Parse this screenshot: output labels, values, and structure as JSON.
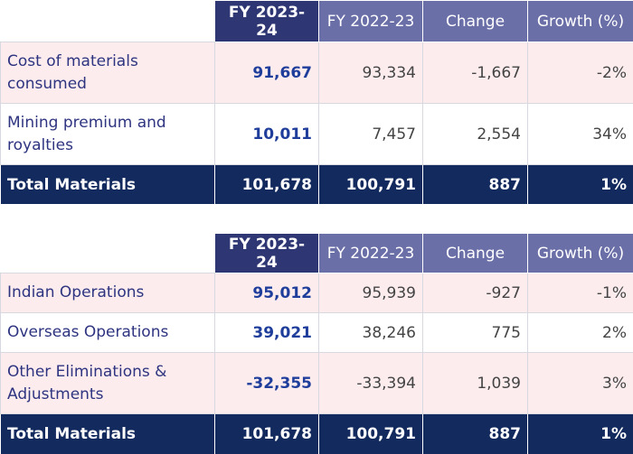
{
  "tables": [
    {
      "header": [
        "FY 2023-24",
        "FY 2022-23",
        "Change",
        "Growth (%)"
      ],
      "rows": [
        {
          "label": "Cost of materials consumed",
          "values": [
            "91,667",
            "93,334",
            "-1,667",
            "-2%"
          ]
        },
        {
          "label": "Mining premium and royalties",
          "values": [
            "10,011",
            "7,457",
            "2,554",
            "34%"
          ]
        }
      ],
      "total": {
        "label": "Total Materials",
        "values": [
          "101,678",
          "100,791",
          "887",
          "1%"
        ]
      }
    },
    {
      "header": [
        "FY 2023-24",
        "FY 2022-23",
        "Change",
        "Growth (%)"
      ],
      "rows": [
        {
          "label": "Indian Operations",
          "values": [
            "95,012",
            "95,939",
            "-927",
            "-1%"
          ]
        },
        {
          "label": "Overseas Operations",
          "values": [
            "39,021",
            "38,246",
            "775",
            "2%"
          ]
        },
        {
          "label": "Other Eliminations & Adjustments",
          "values": [
            "-32,355",
            "-33,394",
            "1,039",
            "3%"
          ]
        }
      ],
      "total": {
        "label": "Total Materials",
        "values": [
          "101,678",
          "100,791",
          "887",
          "1%"
        ]
      }
    }
  ]
}
